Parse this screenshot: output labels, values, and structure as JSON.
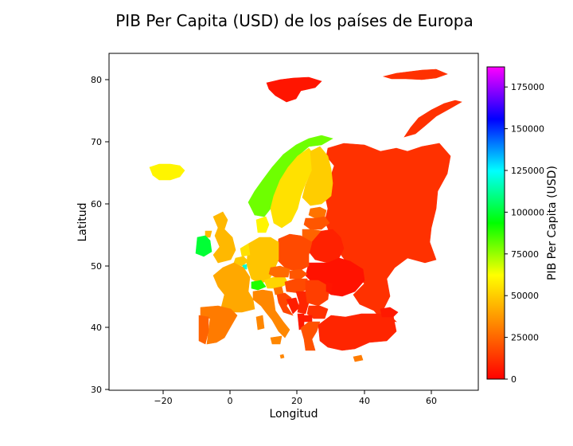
{
  "title": "PIB Per Capita (USD) de los países de Europa",
  "xlabel": "Longitud",
  "ylabel": "Latitud",
  "x_ticks": [
    "−20",
    "0",
    "20",
    "40",
    "60"
  ],
  "y_ticks": [
    "30",
    "40",
    "50",
    "60",
    "70",
    "80"
  ],
  "colorbar": {
    "label": "PIB Per Capita (USD)",
    "ticks": [
      "0",
      "25000",
      "50000",
      "75000",
      "100000",
      "125000",
      "150000",
      "175000"
    ],
    "range": [
      0,
      187000
    ],
    "colors": [
      "#ff0000",
      "#ff8000",
      "#ffff00",
      "#00ff00",
      "#00ffff",
      "#0000ff",
      "#ff00ff"
    ]
  },
  "chart_data": {
    "type": "choropleth",
    "xlim": [
      -37,
      75
    ],
    "ylim": [
      30,
      85
    ],
    "grid": false,
    "legend": "colorbar-right",
    "regions": [
      {
        "country": "Svalbard",
        "value": 5000
      },
      {
        "country": "Franz Josef Land",
        "value": 12000
      },
      {
        "country": "Novaya Zemlya",
        "value": 12000
      },
      {
        "country": "Russia",
        "value": 12000
      },
      {
        "country": "Iceland",
        "value": 60000
      },
      {
        "country": "Norway",
        "value": 80000
      },
      {
        "country": "Sweden",
        "value": 55000
      },
      {
        "country": "Finland",
        "value": 50000
      },
      {
        "country": "Estonia",
        "value": 28000
      },
      {
        "country": "Latvia",
        "value": 21000
      },
      {
        "country": "Lithuania",
        "value": 24000
      },
      {
        "country": "Belarus",
        "value": 8000
      },
      {
        "country": "Ukraine",
        "value": 4500
      },
      {
        "country": "Poland",
        "value": 18000
      },
      {
        "country": "Germany",
        "value": 48000
      },
      {
        "country": "Denmark",
        "value": 60000
      },
      {
        "country": "Netherlands",
        "value": 55000
      },
      {
        "country": "Belgium",
        "value": 49000
      },
      {
        "country": "France",
        "value": 41000
      },
      {
        "country": "United Kingdom",
        "value": 45000
      },
      {
        "country": "Ireland",
        "value": 100000
      },
      {
        "country": "Spain",
        "value": 30000
      },
      {
        "country": "Portugal",
        "value": 24000
      },
      {
        "country": "Italy",
        "value": 33000
      },
      {
        "country": "Switzerland",
        "value": 90000
      },
      {
        "country": "Austria",
        "value": 52000
      },
      {
        "country": "Czechia",
        "value": 26000
      },
      {
        "country": "Slovakia",
        "value": 21000
      },
      {
        "country": "Hungary",
        "value": 18000
      },
      {
        "country": "Slovenia",
        "value": 28000
      },
      {
        "country": "Croatia",
        "value": 17000
      },
      {
        "country": "Bosnia",
        "value": 7000
      },
      {
        "country": "Serbia",
        "value": 9000
      },
      {
        "country": "Romania",
        "value": 15000
      },
      {
        "country": "Moldova",
        "value": 5000
      },
      {
        "country": "Bulgaria",
        "value": 12000
      },
      {
        "country": "Greece",
        "value": 20000
      },
      {
        "country": "Albania",
        "value": 6000
      },
      {
        "country": "North Macedonia",
        "value": 6500
      },
      {
        "country": "Turkey",
        "value": 9000
      },
      {
        "country": "Georgia",
        "value": 6000
      },
      {
        "country": "Cyprus",
        "value": 30000
      },
      {
        "country": "Malta",
        "value": 33000
      },
      {
        "country": "Luxembourg",
        "value": 120000
      }
    ]
  }
}
